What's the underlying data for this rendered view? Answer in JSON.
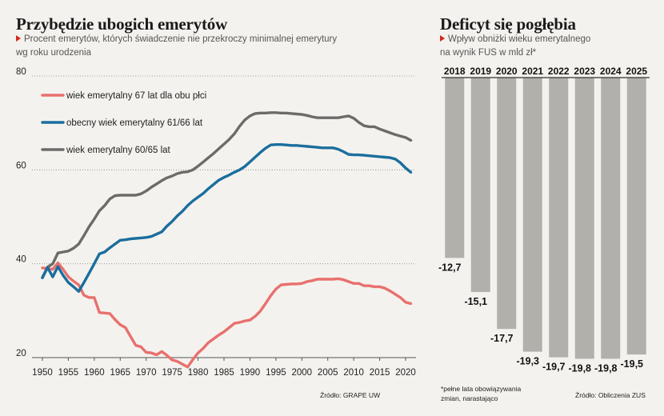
{
  "left": {
    "title": "Przybędzie ubogich emerytów",
    "subtitle_line1": "Procent emerytów, których świadczenie nie przekroczy minimalnej emerytury",
    "subtitle_line2": "wg roku urodzenia",
    "source": "Źródło: GRAPE UW"
  },
  "right": {
    "title": "Deficyt się pogłębia",
    "subtitle_line1": "Wpływ obniżki wieku emerytalnego",
    "subtitle_line2": "na wynik FUS w mld zł*",
    "footnote_line1": "*pełne lata obowiązywania",
    "footnote_line2": "zmian, narastająco",
    "source": "Źródło: Obliczenia ZUS"
  },
  "chart_data": [
    {
      "type": "line",
      "title": "Przybędzie ubogich emerytów",
      "subtitle": "Procent emerytów, których świadczenie nie przekroczy minimalnej emerytury wg roku urodzenia",
      "xlabel": "",
      "ylabel": "",
      "xlim": [
        1948,
        2022
      ],
      "ylim": [
        20,
        80
      ],
      "x_ticks": [
        1950,
        1955,
        1960,
        1965,
        1970,
        1975,
        1980,
        1985,
        1990,
        1995,
        2000,
        2005,
        2010,
        2015,
        2020
      ],
      "y_ticks": [
        20,
        40,
        60,
        80
      ],
      "grid": "horizontal dotted",
      "legend": "top-left",
      "series": [
        {
          "name": "wiek emerytalny 67 lat dla obu płci",
          "color": "#e8706e",
          "x": [
            1950,
            1951,
            1952,
            1953,
            1954,
            1955,
            1956,
            1957,
            1958,
            1959,
            1960,
            1961,
            1962,
            1963,
            1964,
            1965,
            1966,
            1967,
            1968,
            1969,
            1970,
            1971,
            1972,
            1973,
            1974,
            1975,
            1976,
            1977,
            1978,
            1979,
            1980,
            1981,
            1982,
            1983,
            1984,
            1985,
            1986,
            1987,
            1988,
            1989,
            1990,
            1991,
            1992,
            1993,
            1994,
            1995,
            1996,
            1997,
            1998,
            1999,
            2000,
            2001,
            2002,
            2003,
            2004,
            2005,
            2006,
            2007,
            2008,
            2009,
            2010,
            2011,
            2012,
            2013,
            2014,
            2015,
            2016,
            2017,
            2018,
            2019,
            2020,
            2021
          ],
          "values": [
            39.1,
            39.0,
            38.8,
            40.2,
            38.8,
            37.2,
            36.3,
            35.5,
            33.3,
            32.8,
            32.8,
            29.6,
            29.5,
            29.4,
            28.1,
            27.0,
            26.4,
            24.5,
            22.6,
            22.3,
            21.1,
            21.0,
            20.6,
            21.3,
            20.5,
            19.5,
            19.2,
            18.6,
            18.0,
            19.6,
            21.0,
            22.0,
            23.2,
            24.0,
            24.8,
            25.5,
            26.4,
            27.3,
            27.5,
            27.8,
            28.0,
            28.8,
            29.9,
            31.5,
            33.2,
            34.6,
            35.5,
            35.6,
            35.7,
            35.7,
            35.8,
            36.2,
            36.4,
            36.7,
            36.7,
            36.7,
            36.7,
            36.8,
            36.6,
            36.2,
            35.8,
            35.8,
            35.3,
            35.3,
            35.1,
            35.1,
            34.8,
            34.2,
            33.5,
            32.8,
            31.8,
            31.5
          ]
        },
        {
          "name": "obecny wiek emerytalny 61/66 lat",
          "color": "#1a6e9e",
          "x": [
            1950,
            1951,
            1952,
            1953,
            1954,
            1955,
            1956,
            1957,
            1958,
            1959,
            1960,
            1961,
            1962,
            1963,
            1964,
            1965,
            1966,
            1967,
            1968,
            1969,
            1970,
            1971,
            1972,
            1973,
            1974,
            1975,
            1976,
            1977,
            1978,
            1979,
            1980,
            1981,
            1982,
            1983,
            1984,
            1985,
            1986,
            1987,
            1988,
            1989,
            1990,
            1991,
            1992,
            1993,
            1994,
            1995,
            1996,
            1997,
            1998,
            1999,
            2000,
            2001,
            2002,
            2003,
            2004,
            2005,
            2006,
            2007,
            2008,
            2009,
            2010,
            2011,
            2012,
            2013,
            2014,
            2015,
            2016,
            2017,
            2018,
            2019,
            2020,
            2021
          ],
          "values": [
            37.0,
            39.2,
            37.2,
            39.4,
            37.5,
            36.0,
            35.1,
            34.1,
            36.0,
            38.0,
            40.0,
            42.1,
            42.5,
            43.4,
            44.2,
            45.0,
            45.1,
            45.3,
            45.4,
            45.5,
            45.6,
            45.8,
            46.3,
            46.8,
            48.0,
            49.0,
            50.2,
            51.2,
            52.4,
            53.4,
            54.2,
            55.0,
            56.0,
            56.9,
            57.8,
            58.4,
            58.9,
            59.5,
            60.0,
            60.7,
            61.7,
            62.7,
            63.7,
            64.6,
            65.3,
            65.4,
            65.4,
            65.3,
            65.2,
            65.2,
            65.1,
            65.0,
            64.9,
            64.8,
            64.7,
            64.7,
            64.7,
            64.4,
            63.9,
            63.3,
            63.2,
            63.2,
            63.1,
            63.0,
            62.9,
            62.8,
            62.7,
            62.6,
            62.3,
            61.5,
            60.4,
            59.5
          ]
        },
        {
          "name": "wiek emerytalny 60/65 lat",
          "color": "#6d6b69",
          "x": [
            1950,
            1951,
            1952,
            1953,
            1954,
            1955,
            1956,
            1957,
            1958,
            1959,
            1960,
            1961,
            1962,
            1963,
            1964,
            1965,
            1966,
            1967,
            1968,
            1969,
            1970,
            1971,
            1972,
            1973,
            1974,
            1975,
            1976,
            1977,
            1978,
            1979,
            1980,
            1981,
            1982,
            1983,
            1984,
            1985,
            1986,
            1987,
            1988,
            1989,
            1990,
            1991,
            1992,
            1993,
            1994,
            1995,
            1996,
            1997,
            1998,
            1999,
            2000,
            2001,
            2002,
            2003,
            2004,
            2005,
            2006,
            2007,
            2008,
            2009,
            2010,
            2011,
            2012,
            2013,
            2014,
            2015,
            2016,
            2017,
            2018,
            2019,
            2020,
            2021
          ],
          "values": [
            37.1,
            39.3,
            40.0,
            42.3,
            42.5,
            42.7,
            43.3,
            44.2,
            46.0,
            47.9,
            49.5,
            51.3,
            52.4,
            53.8,
            54.5,
            54.6,
            54.6,
            54.6,
            54.6,
            54.9,
            55.5,
            56.3,
            57.0,
            57.7,
            58.3,
            58.7,
            59.2,
            59.5,
            59.6,
            60.0,
            60.8,
            61.7,
            62.6,
            63.5,
            64.5,
            65.5,
            66.5,
            67.7,
            69.3,
            70.6,
            71.5,
            72.0,
            72.1,
            72.1,
            72.2,
            72.2,
            72.1,
            72.1,
            72.0,
            71.9,
            71.8,
            71.6,
            71.3,
            71.1,
            71.1,
            71.1,
            71.1,
            71.1,
            71.3,
            71.5,
            71.0,
            70.1,
            69.4,
            69.2,
            69.2,
            68.7,
            68.3,
            67.9,
            67.5,
            67.2,
            66.9,
            66.3
          ]
        }
      ]
    },
    {
      "type": "bar",
      "title": "Deficyt się pogłębia",
      "subtitle": "Wpływ obniżki wieku emerytalnego na wynik FUS w mld zł*",
      "categories": [
        "2018",
        "2019",
        "2020",
        "2021",
        "2022",
        "2023",
        "2024",
        "2025"
      ],
      "values": [
        -12.7,
        -15.1,
        -17.7,
        -19.3,
        -19.7,
        -19.8,
        -19.8,
        -19.5
      ],
      "labels": [
        "-12,7",
        "-15,1",
        "-17,7",
        "-19,3",
        "-19,7",
        "-19,8",
        "-19,8",
        "-19,5"
      ],
      "ylim": [
        -20,
        0
      ],
      "bar_color": "#b2b0ab",
      "grid": "none",
      "legend": "none"
    }
  ]
}
